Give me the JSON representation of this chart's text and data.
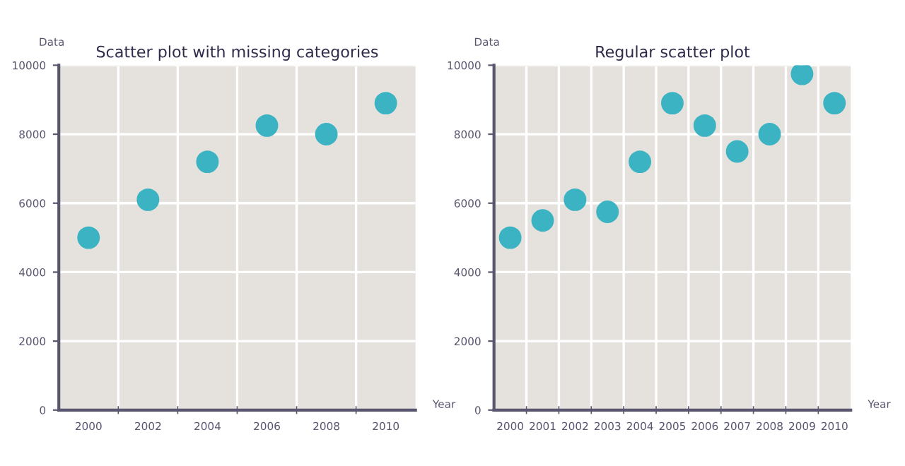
{
  "chart_data": [
    {
      "type": "scatter",
      "title": "Scatter plot with missing categories",
      "xlabel": "Year",
      "ylabel": "Data",
      "categories": [
        "2000",
        "2002",
        "2004",
        "2006",
        "2008",
        "2010"
      ],
      "series": [
        {
          "color": "#3bb3c3",
          "values": [
            5000,
            6100,
            7200,
            8250,
            8000,
            8900
          ]
        }
      ],
      "ylim": [
        0,
        10000
      ],
      "yticks": [
        0,
        2000,
        4000,
        6000,
        8000,
        10000
      ],
      "grid": true,
      "marker": "circle"
    },
    {
      "type": "scatter",
      "title": "Regular scatter plot",
      "xlabel": "Year",
      "ylabel": "Data",
      "categories": [
        "2000",
        "2001",
        "2002",
        "2003",
        "2004",
        "2005",
        "2006",
        "2007",
        "2008",
        "2009",
        "2010"
      ],
      "series": [
        {
          "color": "#3bb3c3",
          "values": [
            5000,
            5500,
            6100,
            5750,
            7200,
            8900,
            8250,
            7500,
            8000,
            9750,
            8900
          ]
        }
      ],
      "ylim": [
        0,
        10000
      ],
      "yticks": [
        0,
        2000,
        4000,
        6000,
        8000,
        10000
      ],
      "grid": true,
      "marker": "circle"
    }
  ]
}
